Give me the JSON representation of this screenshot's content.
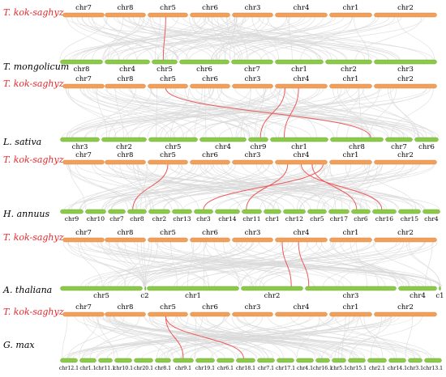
{
  "colors": {
    "query_bar": "#F0A05A",
    "query_bar_stroke": "#D98A45",
    "target_bar": "#8CC84B",
    "target_bar_stroke": "#6FAE32",
    "background_links": "#D9D9D9",
    "highlight_links": "#EE5A5A",
    "query_label": "#E8262A",
    "target_label": "#000000"
  },
  "comparisons": [
    {
      "query_species": "T. kok-saghyz",
      "query_chromosomes": [
        "chr7",
        "chr8",
        "chr5",
        "chr6",
        "chr3",
        "chr4",
        "chr1",
        "chr2"
      ],
      "target_species": "T. mongolicum",
      "target_chromosomes": [
        "chr8",
        "chr4",
        "chr5",
        "chr6",
        "chr7",
        "chr1",
        "chr2",
        "chr3"
      ]
    },
    {
      "query_species": "T. kok-saghyz",
      "query_chromosomes": [
        "chr7",
        "chr8",
        "chr5",
        "chr6",
        "chr3",
        "chr4",
        "chr1",
        "chr2"
      ],
      "target_species": "L. sativa",
      "target_chromosomes": [
        "chr3",
        "chr2",
        "chr5",
        "chr4",
        "chr9",
        "chr1",
        "chr8",
        "chr7",
        "chr6"
      ]
    },
    {
      "query_species": "T. kok-saghyz",
      "query_chromosomes": [
        "chr7",
        "chr8",
        "chr5",
        "chr6",
        "chr3",
        "chr4",
        "chr1",
        "chr2"
      ],
      "target_species": "H. annuus",
      "target_chromosomes": [
        "chr9",
        "chr10",
        "chr7",
        "chr8",
        "chr2",
        "chr13",
        "chr3",
        "chr14",
        "chr11",
        "chr1",
        "chr12",
        "chr5",
        "chr17",
        "chr6",
        "chr16",
        "chr15",
        "chr4"
      ]
    },
    {
      "query_species": "T. kok-saghyz",
      "query_chromosomes": [
        "chr7",
        "chr8",
        "chr5",
        "chr6",
        "chr3",
        "chr4",
        "chr1",
        "chr2"
      ],
      "target_species": "A. thaliana",
      "target_chromosomes": [
        "chr5",
        "c2",
        "chr1",
        "chr2",
        "chr3",
        "chr4",
        "c1"
      ]
    },
    {
      "query_species": "T. kok-saghyz",
      "query_chromosomes": [
        "chr7",
        "chr8",
        "chr5",
        "chr6",
        "chr3",
        "chr4",
        "chr1",
        "chr2"
      ],
      "target_species": "G. max",
      "target_chromosomes": [
        "chr12.1",
        "chr1.1",
        "chr11.1",
        "chr10.1",
        "chr20.1",
        "chr8.1",
        "chr9.1",
        "chr19.1",
        "chr6.1",
        "chr18.1",
        "chr7.1",
        "chr17.1",
        "chr4.1",
        "chr16.1",
        "chr5.1",
        "chr15.1",
        "chr2.1",
        "chr14.1",
        "chr3.1",
        "chr13.1"
      ]
    }
  ]
}
